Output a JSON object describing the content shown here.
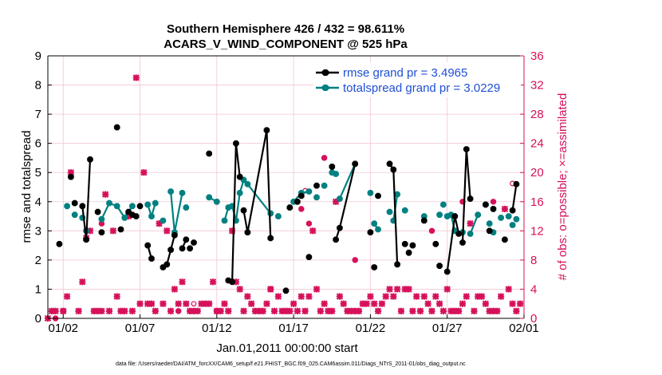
{
  "titles": {
    "line1": "Southern Hemisphere 426 / 432 = 98.611%",
    "line2": "ACARS_V_WIND_COMPONENT @ 525 hPa"
  },
  "footnote": "data file: /Users/raeder/DAI/ATM_forcXX/CAM6_setup/f.e21.FHIST_BGC.f09_025.CAM6assim.011/Diags_NTrS_2011-01/obs_diag_output.nc",
  "colors": {
    "rmse": "#000000",
    "spread": "#008080",
    "obs": "#d6105a",
    "grid": "#f3c5d3",
    "legend_text": "#1f4fd6"
  },
  "chart_data": {
    "type": "line",
    "title": "Southern Hemisphere 426 / 432 = 98.611%",
    "subtitle": "ACARS_V_WIND_COMPONENT @ 525 hPa",
    "xlabel": "Jan.01,2011 00:00:00 start",
    "ylabel": "rmse and totalspread",
    "ylabel_right": "# of obs: o=possible; ×=assimilated",
    "xlim": [
      0,
      31
    ],
    "ylim": [
      0,
      9
    ],
    "ylim_right": [
      0,
      36
    ],
    "x_ticks": [
      1,
      6,
      11,
      16,
      21,
      26,
      31
    ],
    "x_tick_labels": [
      "01/02",
      "01/07",
      "01/12",
      "01/17",
      "01/22",
      "01/27",
      "02/01"
    ],
    "y_ticks": [
      0,
      1,
      2,
      3,
      4,
      5,
      6,
      7,
      8,
      9
    ],
    "y_ticks_right": [
      0,
      4,
      8,
      12,
      16,
      20,
      24,
      28,
      32,
      36
    ],
    "grid": true,
    "legend": {
      "placement": "top-right",
      "rmse": "rmse grand pr = 3.4965",
      "spread": "totalspread grand pr = 3.0229"
    },
    "series": [
      {
        "name": "rmse",
        "x": [
          0.75,
          1.5,
          1.75,
          2.25,
          2.5,
          2.75,
          3.25,
          3.5,
          4.5,
          4.75,
          5.25,
          5.5,
          5.75,
          6.0,
          6.5,
          6.75,
          7.5,
          7.75,
          8.0,
          8.25,
          8.75,
          9.0,
          9.25,
          9.5,
          10.5,
          11.75,
          12.0,
          12.25,
          12.5,
          12.75,
          13.0,
          14.25,
          14.5,
          15.5,
          15.75,
          16.25,
          16.5,
          17.0,
          17.5,
          18.5,
          18.75,
          19.0,
          20.0,
          21.0,
          21.25,
          21.5,
          22.25,
          22.5,
          22.75,
          23.25,
          23.5,
          23.75,
          24.5,
          25.25,
          25.5,
          26.0,
          26.5,
          26.75,
          27.0,
          27.25,
          27.5,
          28.5,
          28.75,
          29.0,
          29.75,
          30.25,
          30.5
        ],
        "y": [
          2.55,
          4.85,
          3.95,
          3.85,
          2.7,
          5.45,
          3.65,
          2.95,
          6.55,
          3.05,
          3.65,
          3.55,
          3.5,
          3.85,
          2.5,
          2.05,
          1.75,
          1.85,
          2.35,
          2.85,
          2.4,
          2.7,
          2.4,
          2.6,
          5.65,
          1.3,
          1.25,
          6.0,
          4.85,
          3.7,
          2.95,
          6.45,
          2.75,
          0.95,
          3.8,
          4.0,
          4.2,
          2.1,
          4.55,
          5.2,
          2.7,
          3.1,
          5.3,
          2.95,
          1.75,
          4.2,
          5.3,
          5.1,
          1.85,
          2.55,
          2.25,
          2.5,
          3.35,
          2.55,
          1.8,
          1.6,
          3.5,
          2.9,
          2.6,
          5.8,
          4.1,
          3.9,
          3.0,
          3.75,
          2.7,
          3.7,
          4.6
        ],
        "segments": [
          [
            3,
            4,
            5
          ],
          [
            14,
            15
          ],
          [
            17,
            18,
            19
          ],
          [
            20,
            21
          ],
          [
            26,
            27,
            28
          ],
          [
            29,
            30,
            31,
            32
          ],
          [
            40,
            41,
            42
          ],
          [
            46,
            47,
            48
          ],
          [
            55,
            56,
            57
          ],
          [
            58,
            59,
            60
          ],
          [
            65,
            66
          ]
        ]
      },
      {
        "name": "totalspread",
        "x": [
          1.25,
          1.75,
          2.25,
          2.5,
          3.5,
          4.0,
          4.5,
          5.0,
          5.5,
          6.5,
          6.75,
          7.0,
          7.5,
          8.0,
          8.25,
          8.75,
          9.0,
          10.5,
          11.0,
          11.5,
          11.75,
          12.0,
          12.25,
          12.5,
          12.75,
          13.0,
          14.5,
          15.0,
          16.0,
          16.5,
          17.0,
          17.5,
          18.0,
          18.5,
          18.75,
          19.0,
          20.0,
          21.0,
          21.25,
          21.5,
          22.25,
          22.5,
          22.75,
          23.25,
          24.5,
          25.5,
          25.75,
          26.0,
          26.25,
          26.5,
          27.0,
          27.5,
          28.0,
          28.5,
          28.75,
          29.0,
          29.5,
          30.0,
          30.25,
          30.5
        ],
        "y": [
          3.85,
          3.55,
          3.45,
          3.0,
          3.4,
          3.95,
          3.85,
          3.45,
          3.85,
          3.9,
          3.5,
          3.95,
          3.35,
          4.35,
          2.95,
          4.3,
          3.8,
          4.15,
          4.0,
          3.35,
          3.8,
          3.85,
          3.35,
          4.3,
          4.75,
          4.6,
          3.6,
          3.5,
          4.0,
          4.3,
          4.35,
          4.15,
          4.55,
          5.0,
          4.95,
          4.1,
          5.3,
          4.3,
          3.25,
          3.05,
          3.65,
          3.35,
          4.25,
          3.7,
          3.5,
          3.55,
          3.9,
          3.5,
          3.55,
          3.0,
          2.95,
          2.9,
          3.55,
          3.9,
          3.25,
          2.95,
          3.45,
          3.5,
          3.2,
          3.4
        ],
        "segments": [
          [
            4,
            5,
            6
          ],
          [
            6,
            7,
            8
          ],
          [
            9,
            10
          ],
          [
            10,
            11
          ],
          [
            13,
            14
          ],
          [
            14,
            15
          ],
          [
            17,
            18
          ],
          [
            19,
            20,
            21
          ],
          [
            21,
            22
          ],
          [
            22,
            23
          ],
          [
            23,
            24,
            25,
            26
          ],
          [
            28,
            29,
            30
          ],
          [
            35,
            36
          ],
          [
            38,
            39
          ],
          [
            41,
            42
          ],
          [
            48,
            49,
            50
          ],
          [
            51,
            52
          ]
        ]
      },
      {
        "name": "obs_assimilated",
        "x": [
          0,
          0.25,
          0.5,
          1,
          1.25,
          1.5,
          2,
          2.25,
          2.5,
          2.75,
          3,
          3.25,
          3.5,
          3.75,
          4,
          4.25,
          4.5,
          4.75,
          5,
          5.25,
          5.5,
          5.75,
          6,
          6.25,
          6.5,
          6.75,
          7,
          7.25,
          7.5,
          7.75,
          8,
          8.25,
          8.5,
          8.75,
          9,
          9.25,
          9.5,
          9.75,
          10,
          10.25,
          10.5,
          10.75,
          11,
          11.25,
          11.5,
          11.75,
          12,
          12.25,
          12.5,
          12.75,
          13,
          13.25,
          13.5,
          13.75,
          14,
          14.25,
          14.5,
          14.75,
          15,
          15.25,
          15.5,
          15.75,
          16,
          16.25,
          16.5,
          16.75,
          17,
          17.25,
          17.5,
          17.75,
          18,
          18.25,
          18.5,
          18.75,
          19,
          19.25,
          19.5,
          19.75,
          20,
          20.25,
          20.5,
          20.75,
          21,
          21.25,
          21.5,
          21.75,
          22,
          22.25,
          22.5,
          22.75,
          23,
          23.25,
          23.5,
          23.75,
          24,
          24.25,
          24.5,
          24.75,
          25,
          25.25,
          25.5,
          25.75,
          26,
          26.25,
          26.5,
          26.75,
          27,
          27.25,
          27.5,
          27.75,
          28,
          28.25,
          28.5,
          28.75,
          29,
          29.25,
          29.5,
          29.75,
          30,
          30.25,
          30.5,
          30.75
        ],
        "y": [
          0,
          1,
          1,
          1,
          3,
          20,
          1,
          5,
          11,
          12,
          1,
          1,
          1,
          17,
          1,
          12,
          3,
          1,
          1,
          14,
          1,
          33,
          2,
          20,
          2,
          2,
          1,
          13,
          2,
          12,
          1,
          4,
          2,
          5,
          2,
          1,
          1,
          1,
          2,
          2,
          2,
          5,
          1,
          1,
          2,
          1,
          12,
          5,
          4,
          1,
          3,
          2,
          1,
          1,
          1,
          2,
          4,
          1,
          3,
          1,
          1,
          1,
          2,
          1,
          3,
          1,
          3,
          12,
          4,
          1,
          2,
          1,
          1,
          16,
          3,
          2,
          1,
          1,
          1,
          1,
          2,
          2,
          3,
          2,
          1,
          2,
          3,
          4,
          3,
          4,
          1,
          4,
          4,
          1,
          3,
          1,
          3,
          2,
          1,
          3,
          2,
          1,
          4,
          1,
          1,
          1,
          2,
          3,
          13,
          1,
          3,
          3,
          2,
          1,
          1,
          1,
          3,
          15,
          4,
          2,
          1,
          2
        ],
        "highlight": [
          {
            "x": 0.5,
            "y": 0
          },
          {
            "x": 1,
            "y": 1
          },
          {
            "x": 3.5,
            "y": 13
          },
          {
            "x": 8.5,
            "y": 1
          },
          {
            "x": 11,
            "y": 1
          },
          {
            "x": 14.5,
            "y": 4
          },
          {
            "x": 16.5,
            "y": 15
          },
          {
            "x": 17,
            "y": 13
          },
          {
            "x": 18,
            "y": 22
          },
          {
            "x": 20,
            "y": 8
          },
          {
            "x": 25,
            "y": 12
          },
          {
            "x": 27,
            "y": 16
          },
          {
            "x": 29,
            "y": 16
          }
        ]
      },
      {
        "name": "obs_possible",
        "x": [
          5.25,
          9.5,
          16.75,
          30.25
        ],
        "y": [
          14.5,
          2,
          17.5,
          18.5
        ]
      }
    ]
  }
}
